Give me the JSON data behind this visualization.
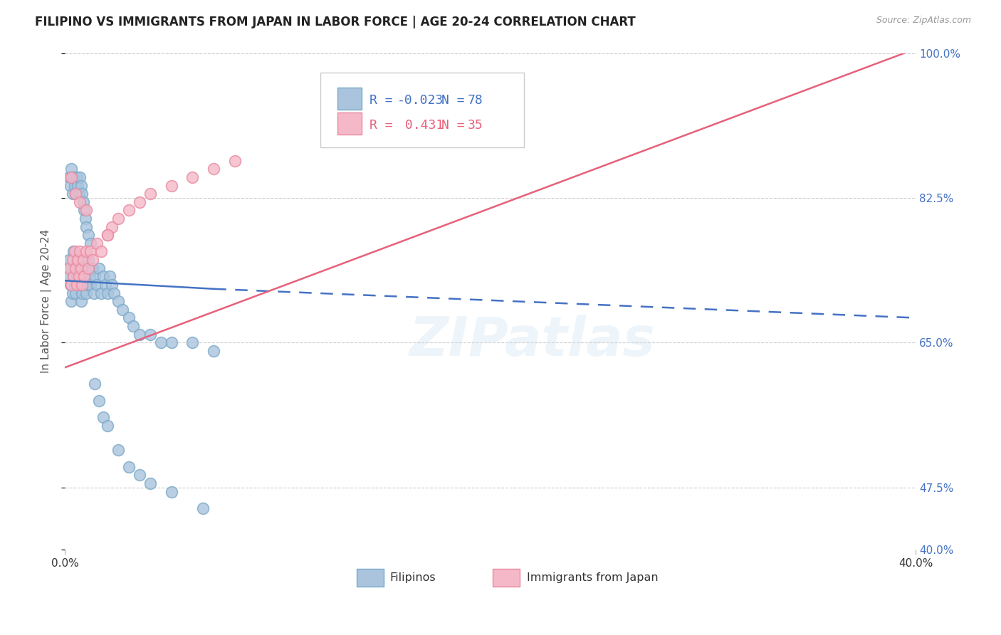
{
  "title": "FILIPINO VS IMMIGRANTS FROM JAPAN IN LABOR FORCE | AGE 20-24 CORRELATION CHART",
  "source": "Source: ZipAtlas.com",
  "ylabel": "In Labor Force | Age 20-24",
  "xlim": [
    0.0,
    40.0
  ],
  "ylim": [
    40.0,
    100.0
  ],
  "xticks": [
    0.0,
    40.0
  ],
  "xtick_labels": [
    "0.0%",
    "40.0%"
  ],
  "ytick_labels": [
    "100.0%",
    "82.5%",
    "65.0%",
    "47.5%",
    "40.0%"
  ],
  "yticks": [
    100.0,
    82.5,
    65.0,
    47.5,
    40.0
  ],
  "blue_color_face": "#aac4de",
  "blue_color_edge": "#7aaac8",
  "pink_color_face": "#f5b8c8",
  "pink_color_edge": "#e88aa0",
  "blue_line_color": "#4472c4",
  "pink_line_color": "#e8607a",
  "legend_R_color": "#4472c4",
  "legend_N_color": "#4472c4",
  "title_fontsize": 12,
  "label_fontsize": 11,
  "tick_fontsize": 11,
  "right_tick_color": "#4472c4",
  "watermark": "ZIPatlas",
  "background_color": "#ffffff",
  "grid_color": "#cccccc",
  "blue_scatter_x": [
    0.15,
    0.2,
    0.25,
    0.3,
    0.3,
    0.35,
    0.4,
    0.4,
    0.45,
    0.5,
    0.5,
    0.55,
    0.6,
    0.65,
    0.7,
    0.75,
    0.8,
    0.8,
    0.85,
    0.9,
    0.95,
    1.0,
    1.0,
    1.05,
    1.1,
    1.15,
    1.2,
    1.3,
    1.35,
    1.4,
    1.5,
    1.6,
    1.7,
    1.8,
    1.9,
    2.0,
    2.1,
    2.2,
    2.3,
    2.5,
    2.7,
    3.0,
    3.2,
    3.5,
    4.0,
    4.5,
    5.0,
    6.0,
    7.0,
    0.2,
    0.25,
    0.3,
    0.35,
    0.4,
    0.45,
    0.5,
    0.55,
    0.6,
    0.65,
    0.7,
    0.75,
    0.8,
    0.85,
    0.9,
    0.95,
    1.0,
    1.1,
    1.2,
    1.4,
    1.6,
    1.8,
    2.0,
    2.5,
    3.0,
    3.5,
    4.0,
    5.0,
    6.5
  ],
  "blue_scatter_y": [
    73.0,
    75.0,
    72.0,
    70.0,
    74.0,
    71.0,
    76.0,
    73.0,
    72.0,
    74.0,
    71.0,
    73.0,
    75.0,
    72.0,
    74.0,
    70.0,
    73.0,
    71.0,
    74.0,
    72.0,
    73.0,
    71.0,
    74.0,
    72.0,
    75.0,
    73.0,
    72.0,
    74.0,
    71.0,
    73.0,
    72.0,
    74.0,
    71.0,
    73.0,
    72.0,
    71.0,
    73.0,
    72.0,
    71.0,
    70.0,
    69.0,
    68.0,
    67.0,
    66.0,
    66.0,
    65.0,
    65.0,
    65.0,
    64.0,
    85.0,
    84.0,
    86.0,
    83.0,
    85.0,
    84.0,
    83.0,
    85.0,
    84.0,
    83.0,
    85.0,
    84.0,
    83.0,
    82.0,
    81.0,
    80.0,
    79.0,
    78.0,
    77.0,
    60.0,
    58.0,
    56.0,
    55.0,
    52.0,
    50.0,
    49.0,
    48.0,
    47.0,
    45.0
  ],
  "pink_scatter_x": [
    0.2,
    0.3,
    0.35,
    0.4,
    0.45,
    0.5,
    0.55,
    0.6,
    0.65,
    0.7,
    0.75,
    0.8,
    0.85,
    0.9,
    1.0,
    1.1,
    1.2,
    1.3,
    1.5,
    1.7,
    2.0,
    2.2,
    2.5,
    3.0,
    3.5,
    4.0,
    5.0,
    6.0,
    7.0,
    8.0,
    0.3,
    0.5,
    0.7,
    1.0,
    2.0
  ],
  "pink_scatter_y": [
    74.0,
    72.0,
    75.0,
    73.0,
    76.0,
    74.0,
    72.0,
    75.0,
    73.0,
    76.0,
    74.0,
    72.0,
    75.0,
    73.0,
    76.0,
    74.0,
    76.0,
    75.0,
    77.0,
    76.0,
    78.0,
    79.0,
    80.0,
    81.0,
    82.0,
    83.0,
    84.0,
    85.0,
    86.0,
    87.0,
    85.0,
    83.0,
    82.0,
    81.0,
    78.0
  ],
  "blue_line_x1": 0.0,
  "blue_line_y1": 72.5,
  "blue_line_x2": 7.0,
  "blue_line_y2": 71.5,
  "blue_dash_x1": 7.0,
  "blue_dash_y1": 71.5,
  "blue_dash_x2": 40.0,
  "blue_dash_y2": 68.0,
  "pink_line_x1": 0.0,
  "pink_line_y1": 62.0,
  "pink_line_x2": 40.0,
  "pink_line_y2": 100.5,
  "legend_blue_label_R": "R = -0.023",
  "legend_blue_label_N": "N = 78",
  "legend_pink_label_R": "R =  0.431",
  "legend_pink_label_N": "N = 35",
  "bottom_label_blue": "Filipinos",
  "bottom_label_pink": "Immigrants from Japan"
}
